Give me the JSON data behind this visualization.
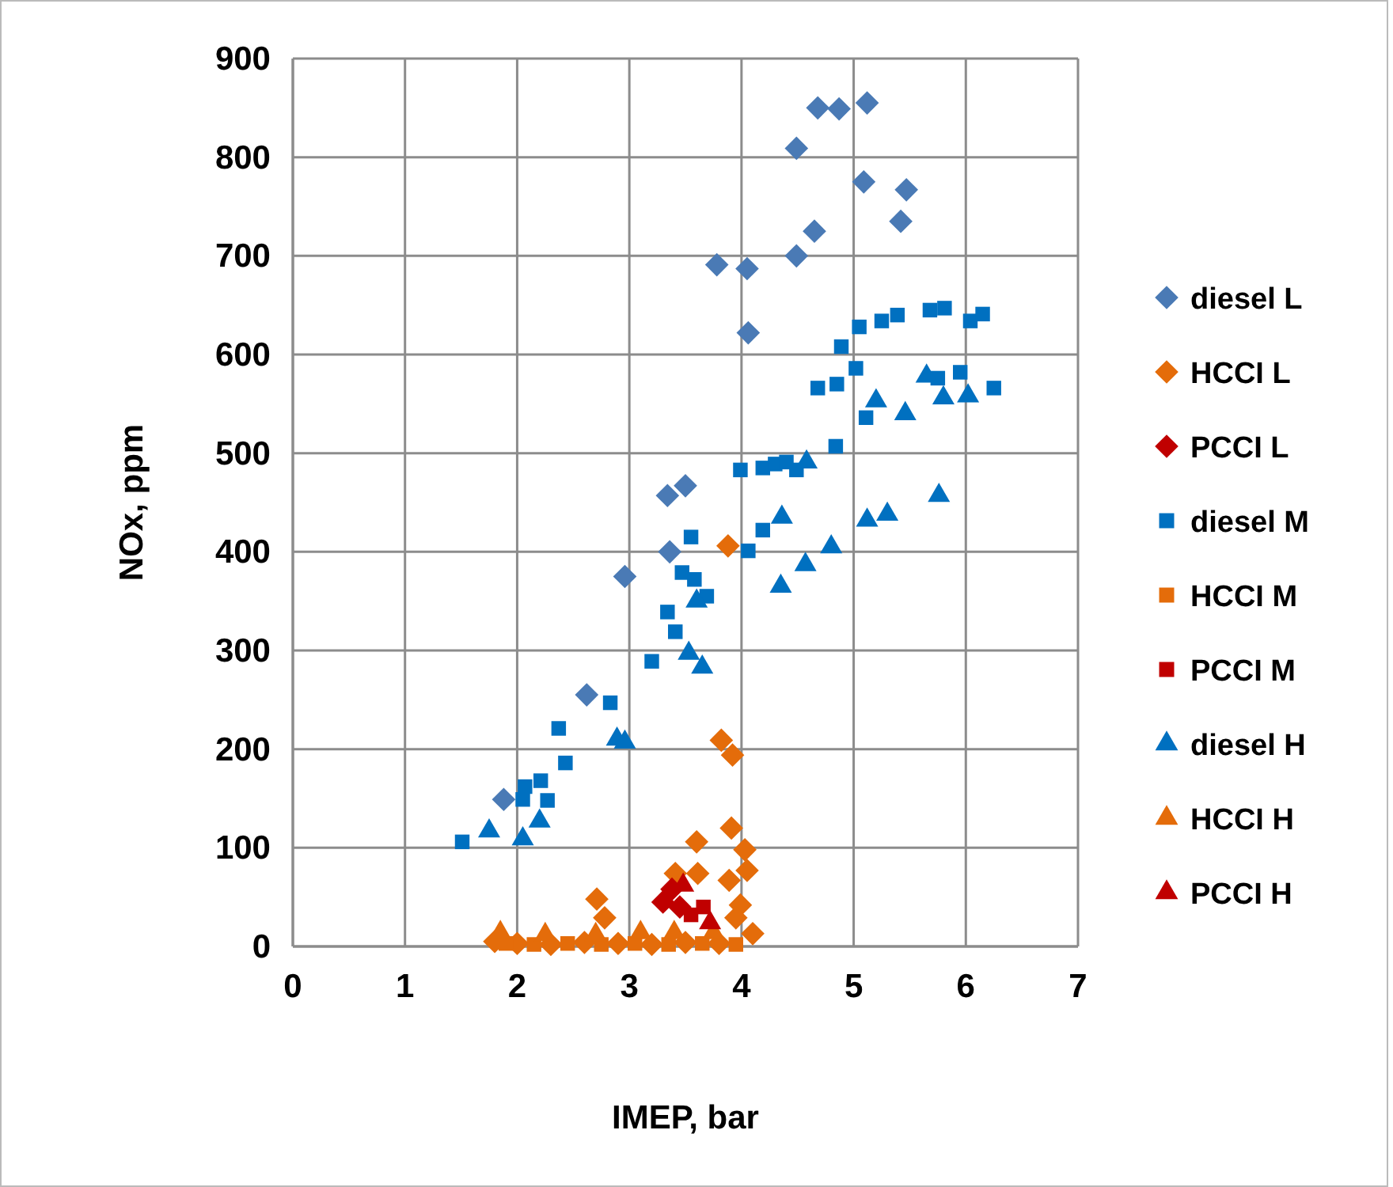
{
  "chart_data": {
    "type": "scatter",
    "xlabel": "IMEP, bar",
    "ylabel": "NOx, ppm",
    "xlim": [
      0,
      7
    ],
    "xticks": [
      0,
      1,
      2,
      3,
      4,
      5,
      6,
      7
    ],
    "ylim": [
      0,
      900
    ],
    "yticks": [
      0,
      100,
      200,
      300,
      400,
      500,
      600,
      700,
      800,
      900
    ],
    "grid": true,
    "legend": "right",
    "series": [
      {
        "name": "diesel L",
        "color": "#4a7ab5",
        "marker": "diamond",
        "x": [
          1.88,
          2.62,
          2.96,
          3.36,
          3.34,
          3.5,
          3.78,
          4.05,
          4.06,
          4.49,
          4.49,
          4.65,
          4.68,
          4.87,
          5.09,
          5.12,
          5.47,
          5.42
        ],
        "values": [
          149,
          255,
          375,
          400,
          457,
          467,
          691,
          687,
          622,
          700,
          809,
          725,
          850,
          849,
          775,
          855,
          767,
          735
        ]
      },
      {
        "name": "HCCI L",
        "color": "#e46c0a",
        "marker": "diamond",
        "x": [
          3.88,
          3.82,
          3.92,
          3.6,
          3.91,
          4.03,
          3.41,
          3.61,
          3.89,
          4.05,
          3.99,
          3.95,
          4.1,
          2.71,
          2.78,
          1.8,
          2.0,
          2.3,
          2.6,
          2.9,
          3.2,
          3.5,
          3.8
        ],
        "values": [
          406,
          209,
          194,
          106,
          120,
          98,
          74,
          74,
          67,
          77,
          42,
          29,
          13,
          48,
          29,
          5,
          3,
          2,
          4,
          3,
          2,
          4,
          3
        ]
      },
      {
        "name": "PCCI L",
        "color": "#c00000",
        "marker": "diamond",
        "x": [
          3.3,
          3.38,
          3.45
        ],
        "values": [
          45,
          58,
          40
        ]
      },
      {
        "name": "diesel M",
        "color": "#0070c0",
        "marker": "square",
        "x": [
          1.51,
          2.05,
          2.07,
          2.21,
          2.27,
          2.43,
          2.37,
          2.83,
          3.2,
          3.41,
          3.34,
          3.55,
          3.47,
          3.58,
          3.69,
          4.06,
          4.19,
          3.99,
          4.19,
          4.3,
          4.4,
          4.49,
          4.84,
          4.68,
          4.85,
          5.02,
          5.11,
          4.89,
          5.05,
          5.25,
          5.39,
          5.68,
          5.81,
          5.75,
          5.95,
          6.04,
          6.15,
          6.25
        ],
        "values": [
          106,
          149,
          162,
          168,
          148,
          186,
          221,
          247,
          289,
          319,
          339,
          415,
          379,
          372,
          355,
          401,
          422,
          483,
          485,
          489,
          491,
          483,
          507,
          566,
          570,
          586,
          536,
          608,
          628,
          634,
          640,
          645,
          647,
          576,
          582,
          634,
          641,
          566
        ]
      },
      {
        "name": "HCCI M",
        "color": "#e46c0a",
        "marker": "square",
        "x": [
          1.9,
          2.15,
          2.45,
          2.75,
          3.05,
          3.35,
          3.65,
          3.95
        ],
        "values": [
          3,
          2,
          3,
          2,
          3,
          2,
          3,
          2
        ]
      },
      {
        "name": "PCCI M",
        "color": "#c00000",
        "marker": "square",
        "x": [
          3.55,
          3.66
        ],
        "values": [
          32,
          40
        ]
      },
      {
        "name": "diesel H",
        "color": "#0070c0",
        "marker": "triangle",
        "x": [
          1.75,
          2.05,
          2.2,
          2.89,
          2.96,
          3.53,
          3.65,
          3.6,
          4.36,
          4.35,
          4.57,
          4.8,
          5.12,
          5.3,
          5.76,
          4.58,
          5.2,
          5.46,
          5.65,
          5.8,
          6.02
        ],
        "values": [
          117,
          109,
          127,
          210,
          207,
          297,
          283,
          350,
          435,
          365,
          387,
          405,
          432,
          438,
          457,
          491,
          553,
          540,
          578,
          556,
          558
        ]
      },
      {
        "name": "HCCI H",
        "color": "#e46c0a",
        "marker": "triangle",
        "x": [
          1.85,
          2.25,
          2.7,
          3.1,
          3.4,
          3.75
        ],
        "values": [
          14,
          12,
          12,
          14,
          14,
          14
        ]
      },
      {
        "name": "PCCI H",
        "color": "#c00000",
        "marker": "triangle",
        "x": [
          3.48,
          3.72
        ],
        "values": [
          62,
          24
        ]
      }
    ]
  }
}
